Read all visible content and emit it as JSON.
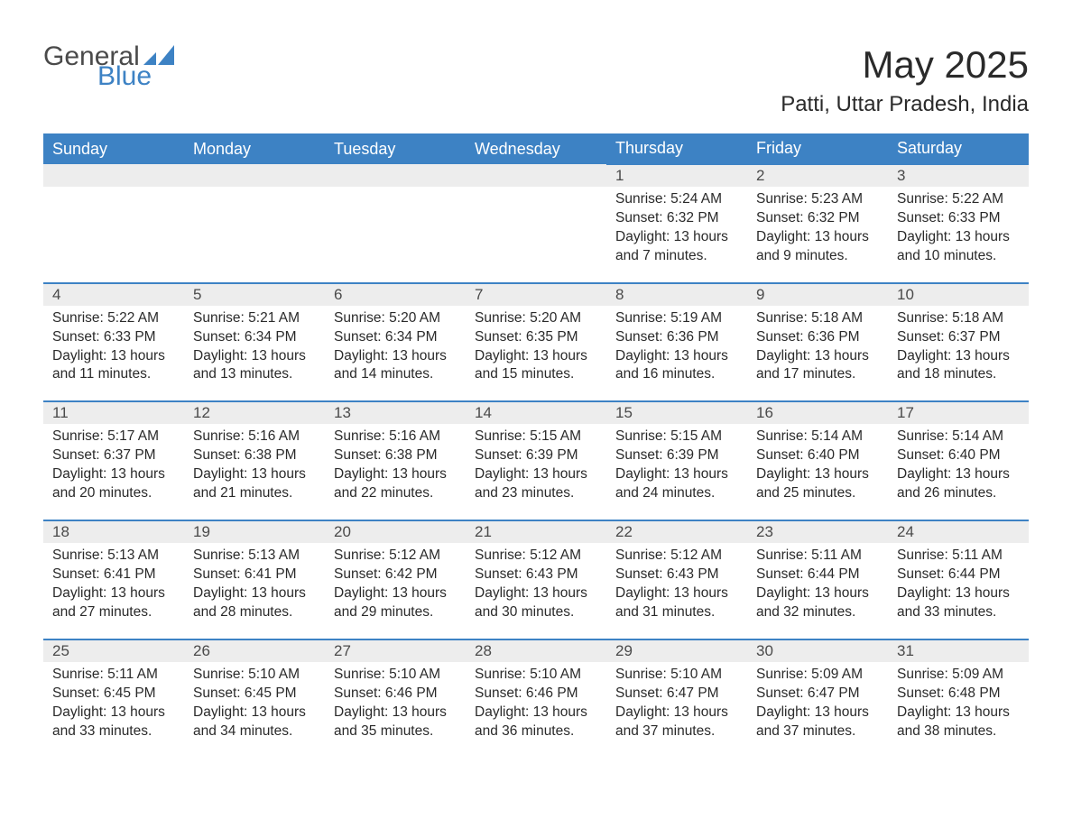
{
  "brand": {
    "text_general": "General",
    "text_blue": "Blue",
    "mark_color": "#3d82c4"
  },
  "title": "May 2025",
  "location": "Patti, Uttar Pradesh, India",
  "colors": {
    "header_bg": "#3d82c4",
    "header_text": "#ffffff",
    "daynum_bg": "#ededed",
    "daynum_border": "#3d82c4",
    "body_text": "#2a2a2a",
    "page_bg": "#ffffff"
  },
  "typography": {
    "title_fontsize": 42,
    "location_fontsize": 24,
    "header_fontsize": 18,
    "daynum_fontsize": 17,
    "details_fontsize": 15.5,
    "font_family": "Segoe UI"
  },
  "day_headers": [
    "Sunday",
    "Monday",
    "Tuesday",
    "Wednesday",
    "Thursday",
    "Friday",
    "Saturday"
  ],
  "weeks": [
    [
      null,
      null,
      null,
      null,
      {
        "n": "1",
        "sunrise": "5:24 AM",
        "sunset": "6:32 PM",
        "daylight": "13 hours and 7 minutes."
      },
      {
        "n": "2",
        "sunrise": "5:23 AM",
        "sunset": "6:32 PM",
        "daylight": "13 hours and 9 minutes."
      },
      {
        "n": "3",
        "sunrise": "5:22 AM",
        "sunset": "6:33 PM",
        "daylight": "13 hours and 10 minutes."
      }
    ],
    [
      {
        "n": "4",
        "sunrise": "5:22 AM",
        "sunset": "6:33 PM",
        "daylight": "13 hours and 11 minutes."
      },
      {
        "n": "5",
        "sunrise": "5:21 AM",
        "sunset": "6:34 PM",
        "daylight": "13 hours and 13 minutes."
      },
      {
        "n": "6",
        "sunrise": "5:20 AM",
        "sunset": "6:34 PM",
        "daylight": "13 hours and 14 minutes."
      },
      {
        "n": "7",
        "sunrise": "5:20 AM",
        "sunset": "6:35 PM",
        "daylight": "13 hours and 15 minutes."
      },
      {
        "n": "8",
        "sunrise": "5:19 AM",
        "sunset": "6:36 PM",
        "daylight": "13 hours and 16 minutes."
      },
      {
        "n": "9",
        "sunrise": "5:18 AM",
        "sunset": "6:36 PM",
        "daylight": "13 hours and 17 minutes."
      },
      {
        "n": "10",
        "sunrise": "5:18 AM",
        "sunset": "6:37 PM",
        "daylight": "13 hours and 18 minutes."
      }
    ],
    [
      {
        "n": "11",
        "sunrise": "5:17 AM",
        "sunset": "6:37 PM",
        "daylight": "13 hours and 20 minutes."
      },
      {
        "n": "12",
        "sunrise": "5:16 AM",
        "sunset": "6:38 PM",
        "daylight": "13 hours and 21 minutes."
      },
      {
        "n": "13",
        "sunrise": "5:16 AM",
        "sunset": "6:38 PM",
        "daylight": "13 hours and 22 minutes."
      },
      {
        "n": "14",
        "sunrise": "5:15 AM",
        "sunset": "6:39 PM",
        "daylight": "13 hours and 23 minutes."
      },
      {
        "n": "15",
        "sunrise": "5:15 AM",
        "sunset": "6:39 PM",
        "daylight": "13 hours and 24 minutes."
      },
      {
        "n": "16",
        "sunrise": "5:14 AM",
        "sunset": "6:40 PM",
        "daylight": "13 hours and 25 minutes."
      },
      {
        "n": "17",
        "sunrise": "5:14 AM",
        "sunset": "6:40 PM",
        "daylight": "13 hours and 26 minutes."
      }
    ],
    [
      {
        "n": "18",
        "sunrise": "5:13 AM",
        "sunset": "6:41 PM",
        "daylight": "13 hours and 27 minutes."
      },
      {
        "n": "19",
        "sunrise": "5:13 AM",
        "sunset": "6:41 PM",
        "daylight": "13 hours and 28 minutes."
      },
      {
        "n": "20",
        "sunrise": "5:12 AM",
        "sunset": "6:42 PM",
        "daylight": "13 hours and 29 minutes."
      },
      {
        "n": "21",
        "sunrise": "5:12 AM",
        "sunset": "6:43 PM",
        "daylight": "13 hours and 30 minutes."
      },
      {
        "n": "22",
        "sunrise": "5:12 AM",
        "sunset": "6:43 PM",
        "daylight": "13 hours and 31 minutes."
      },
      {
        "n": "23",
        "sunrise": "5:11 AM",
        "sunset": "6:44 PM",
        "daylight": "13 hours and 32 minutes."
      },
      {
        "n": "24",
        "sunrise": "5:11 AM",
        "sunset": "6:44 PM",
        "daylight": "13 hours and 33 minutes."
      }
    ],
    [
      {
        "n": "25",
        "sunrise": "5:11 AM",
        "sunset": "6:45 PM",
        "daylight": "13 hours and 33 minutes."
      },
      {
        "n": "26",
        "sunrise": "5:10 AM",
        "sunset": "6:45 PM",
        "daylight": "13 hours and 34 minutes."
      },
      {
        "n": "27",
        "sunrise": "5:10 AM",
        "sunset": "6:46 PM",
        "daylight": "13 hours and 35 minutes."
      },
      {
        "n": "28",
        "sunrise": "5:10 AM",
        "sunset": "6:46 PM",
        "daylight": "13 hours and 36 minutes."
      },
      {
        "n": "29",
        "sunrise": "5:10 AM",
        "sunset": "6:47 PM",
        "daylight": "13 hours and 37 minutes."
      },
      {
        "n": "30",
        "sunrise": "5:09 AM",
        "sunset": "6:47 PM",
        "daylight": "13 hours and 37 minutes."
      },
      {
        "n": "31",
        "sunrise": "5:09 AM",
        "sunset": "6:48 PM",
        "daylight": "13 hours and 38 minutes."
      }
    ]
  ],
  "labels": {
    "sunrise": "Sunrise:",
    "sunset": "Sunset:",
    "daylight": "Daylight:"
  }
}
